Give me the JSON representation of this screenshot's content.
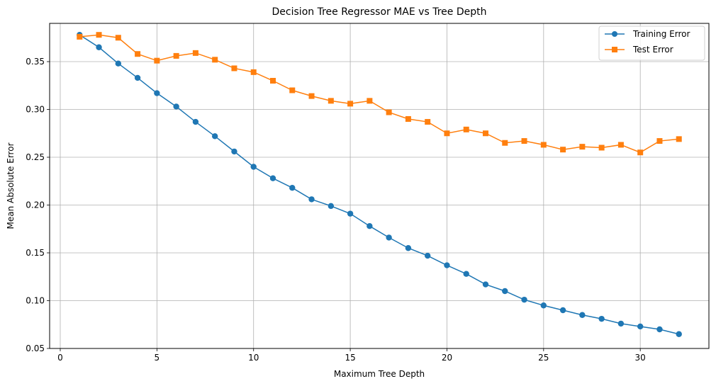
{
  "chart_data": {
    "type": "line",
    "title": "Decision Tree Regressor MAE vs Tree Depth",
    "xlabel": "Maximum Tree Depth",
    "ylabel": "Mean Absolute Error",
    "xlim": [
      -0.55,
      33.55
    ],
    "ylim": [
      0.05,
      0.39
    ],
    "xticks": [
      0,
      5,
      10,
      15,
      20,
      25,
      30
    ],
    "yticks": [
      0.05,
      0.1,
      0.15,
      0.2,
      0.25,
      0.3,
      0.35
    ],
    "xtick_labels": [
      "0",
      "5",
      "10",
      "15",
      "20",
      "25",
      "30"
    ],
    "ytick_labels": [
      "0.05",
      "0.10",
      "0.15",
      "0.20",
      "0.25",
      "0.30",
      "0.35"
    ],
    "grid": true,
    "legend_position": "top-right",
    "x": [
      1,
      2,
      3,
      4,
      5,
      6,
      7,
      8,
      9,
      10,
      11,
      12,
      13,
      14,
      15,
      16,
      17,
      18,
      19,
      20,
      21,
      22,
      23,
      24,
      25,
      26,
      27,
      28,
      29,
      30,
      31,
      32
    ],
    "series": [
      {
        "name": "Training Error",
        "color": "#1f77b4",
        "marker": "circle",
        "values": [
          0.378,
          0.365,
          0.348,
          0.333,
          0.317,
          0.303,
          0.287,
          0.272,
          0.256,
          0.24,
          0.228,
          0.218,
          0.206,
          0.199,
          0.191,
          0.178,
          0.166,
          0.155,
          0.147,
          0.137,
          0.128,
          0.117,
          0.11,
          0.101,
          0.095,
          0.09,
          0.085,
          0.081,
          0.076,
          0.073,
          0.07,
          0.065
        ]
      },
      {
        "name": "Test Error",
        "color": "#ff7f0e",
        "marker": "square",
        "values": [
          0.376,
          0.378,
          0.375,
          0.358,
          0.351,
          0.356,
          0.359,
          0.352,
          0.343,
          0.339,
          0.33,
          0.32,
          0.314,
          0.309,
          0.306,
          0.309,
          0.297,
          0.29,
          0.287,
          0.275,
          0.279,
          0.275,
          0.265,
          0.267,
          0.263,
          0.258,
          0.261,
          0.26,
          0.263,
          0.255,
          0.267,
          0.269
        ]
      }
    ]
  }
}
